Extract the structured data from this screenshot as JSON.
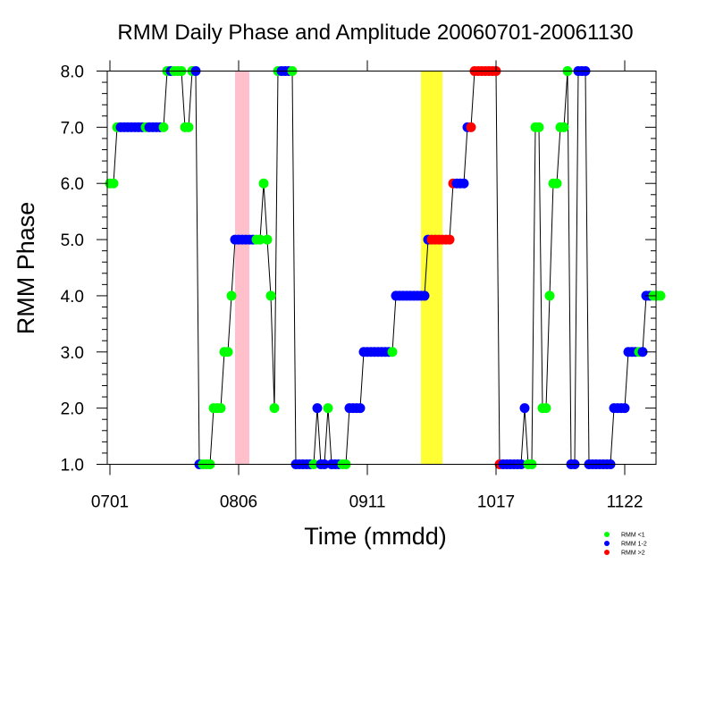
{
  "chart_data": {
    "type": "scatter",
    "title": "RMM Daily Phase and Amplitude 20060701-20061130",
    "xlabel": "Time (mmdd)",
    "ylabel": "RMM Phase",
    "ylim": [
      1,
      8
    ],
    "yticks": [
      "1.0",
      "2.0",
      "3.0",
      "4.0",
      "5.0",
      "6.0",
      "7.0",
      "8.0"
    ],
    "xticks": [
      {
        "day": 0,
        "label": "0701"
      },
      {
        "day": 36,
        "label": "0806"
      },
      {
        "day": 72,
        "label": "0911"
      },
      {
        "day": 108,
        "label": "1017"
      },
      {
        "day": 144,
        "label": "1122"
      }
    ],
    "xlim": [
      0,
      152
    ],
    "shaded_periods": [
      {
        "start": 35,
        "end": 39,
        "color": "#ffc0cb"
      },
      {
        "start": 87,
        "end": 93,
        "color": "#ffff33"
      }
    ],
    "series": [
      {
        "name": "RMM <1",
        "color": "#00ff00"
      },
      {
        "name": "RMM 1-2",
        "color": "#0000ff"
      },
      {
        "name": "RMM >2",
        "color": "#ff0000"
      }
    ],
    "phase": [
      6,
      6,
      7,
      7,
      7,
      7,
      7,
      7,
      7,
      7,
      7,
      7,
      7,
      7,
      7,
      7,
      8,
      8,
      8,
      8,
      8,
      7,
      7,
      8,
      8,
      1,
      1,
      1,
      1,
      2,
      2,
      2,
      3,
      3,
      4,
      5,
      5,
      5,
      5,
      5,
      5,
      5,
      5,
      6,
      5,
      4,
      2,
      8,
      8,
      8,
      8,
      8,
      1,
      1,
      1,
      1,
      1,
      1,
      2,
      1,
      1,
      2,
      1,
      1,
      1,
      1,
      1,
      2,
      2,
      2,
      2,
      3,
      3,
      3,
      3,
      3,
      3,
      3,
      3,
      3,
      4,
      4,
      4,
      4,
      4,
      4,
      4,
      4,
      4,
      5,
      5,
      5,
      5,
      5,
      5,
      5,
      6,
      6,
      6,
      6,
      7,
      7,
      8,
      8,
      8,
      8,
      8,
      8,
      8,
      1,
      1,
      1,
      1,
      1,
      1,
      1,
      2,
      1,
      1,
      7,
      7,
      2,
      2,
      4,
      6,
      6,
      7,
      7,
      8,
      1,
      1,
      8,
      8,
      8,
      1,
      1,
      1,
      1,
      1,
      1,
      1,
      2,
      2,
      2,
      2,
      3,
      3,
      3,
      3,
      3,
      4,
      4,
      4,
      4,
      4
    ],
    "amplitude_class": [
      0,
      0,
      0,
      1,
      1,
      1,
      1,
      1,
      1,
      1,
      0,
      1,
      1,
      1,
      1,
      0,
      0,
      1,
      0,
      0,
      0,
      0,
      0,
      0,
      1,
      1,
      0,
      0,
      0,
      0,
      0,
      0,
      0,
      0,
      0,
      1,
      1,
      1,
      1,
      1,
      1,
      0,
      0,
      0,
      0,
      0,
      0,
      0,
      1,
      1,
      1,
      0,
      1,
      1,
      1,
      1,
      1,
      0,
      1,
      1,
      1,
      0,
      1,
      1,
      1,
      0,
      0,
      1,
      1,
      1,
      1,
      1,
      1,
      1,
      1,
      1,
      1,
      1,
      1,
      0,
      1,
      1,
      1,
      1,
      1,
      1,
      1,
      1,
      1,
      1,
      2,
      2,
      2,
      2,
      2,
      2,
      2,
      1,
      1,
      1,
      1,
      2,
      2,
      2,
      2,
      2,
      2,
      2,
      2,
      2,
      1,
      1,
      1,
      1,
      1,
      1,
      1,
      0,
      0,
      0,
      0,
      0,
      0,
      0,
      0,
      0,
      0,
      0,
      0,
      1,
      1,
      1,
      1,
      1,
      1,
      1,
      1,
      1,
      1,
      1,
      1,
      1,
      1,
      1,
      1,
      1,
      1,
      1,
      0,
      1,
      1,
      1,
      0,
      0
    ]
  }
}
